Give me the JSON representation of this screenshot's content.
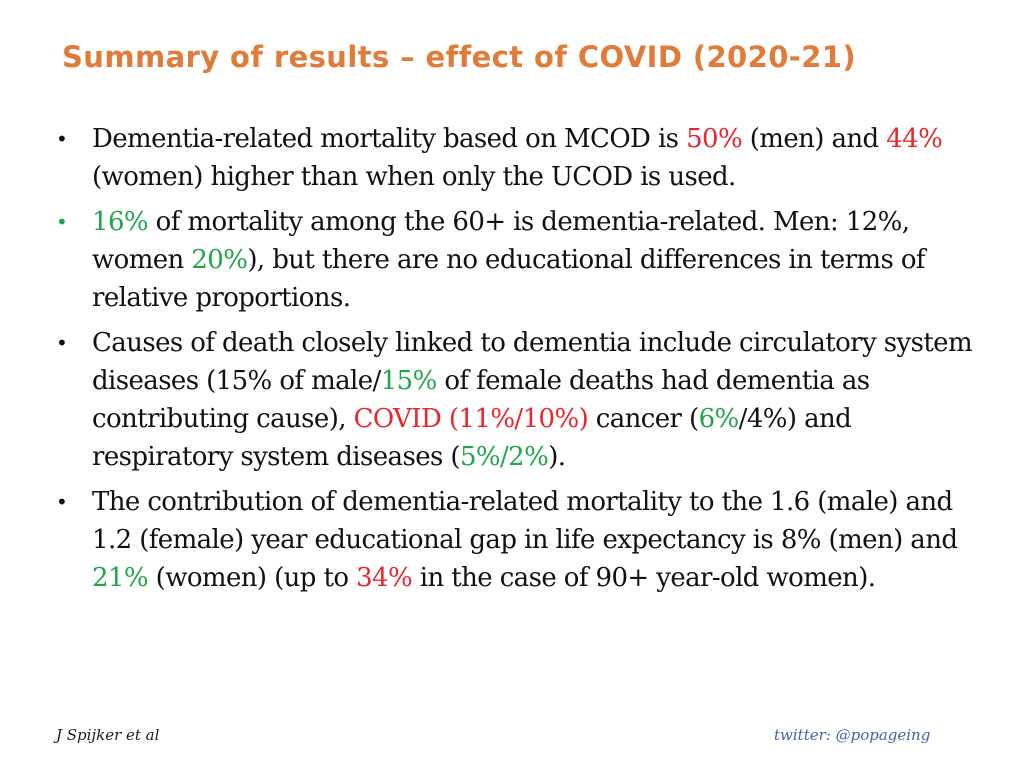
{
  "title": "Summary of results – effect of COVID (2020-21)",
  "colors": {
    "title": "#E07B39",
    "red": "#E8262B",
    "green": "#1FA64A",
    "link": "#4A5FA8"
  },
  "bullets": [
    {
      "dot_color": "default",
      "segments": [
        {
          "text": "Dementia-related mortality based on MCOD is ",
          "color": "default"
        },
        {
          "text": "50%",
          "color": "red"
        },
        {
          "text": " (men) and ",
          "color": "default"
        },
        {
          "text": "44%",
          "color": "red"
        },
        {
          "text": " (women) higher than when only the UCOD is used.",
          "color": "default"
        }
      ]
    },
    {
      "dot_color": "green",
      "segments": [
        {
          "text": "16%",
          "color": "green"
        },
        {
          "text": " of mortality among the 60+ is dementia-related. Men: 12%, women ",
          "color": "default"
        },
        {
          "text": "20%",
          "color": "green"
        },
        {
          "text": "), but there are no educational differences in terms of relative proportions.",
          "color": "default"
        }
      ]
    },
    {
      "dot_color": "default",
      "segments": [
        {
          "text": "Causes of death closely linked to dementia include circulatory system diseases (15% of male/",
          "color": "default"
        },
        {
          "text": "15%",
          "color": "green"
        },
        {
          "text": " of female deaths had dementia as contributing cause), ",
          "color": "default"
        },
        {
          "text": "COVID (11%/10%)",
          "color": "red"
        },
        {
          "text": " cancer (",
          "color": "default"
        },
        {
          "text": "6%",
          "color": "green"
        },
        {
          "text": "/4%) and respiratory system diseases (",
          "color": "default"
        },
        {
          "text": "5%/2%",
          "color": "green"
        },
        {
          "text": ").",
          "color": "default"
        }
      ]
    },
    {
      "dot_color": "default",
      "segments": [
        {
          "text": "The contribution of dementia-related mortality to the 1.6 (male) and 1.2 (female) year educational gap in life expectancy is 8% (men) and ",
          "color": "default"
        },
        {
          "text": "21%",
          "color": "green"
        },
        {
          "text": " (women) (up to ",
          "color": "default"
        },
        {
          "text": "34%",
          "color": "red"
        },
        {
          "text": " in the case of 90+ year-old women).",
          "color": "default"
        }
      ]
    }
  ],
  "footer": {
    "author": "J Spijker et al",
    "twitter": "twitter: @popageing"
  }
}
